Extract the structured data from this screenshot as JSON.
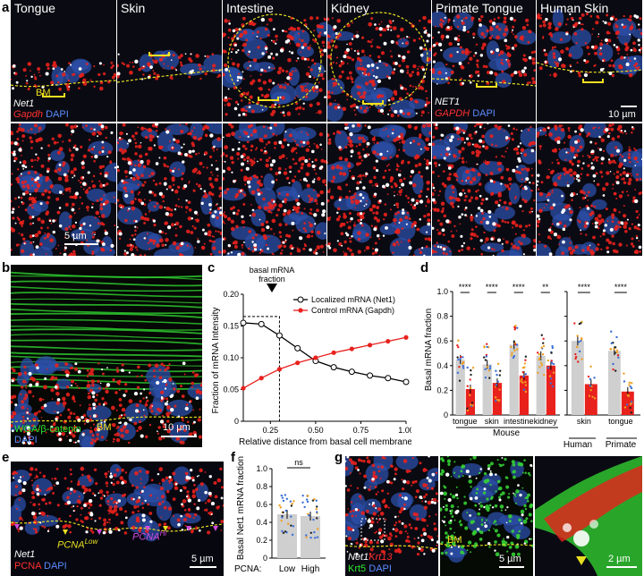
{
  "panel_a": {
    "label": "a",
    "tiles": [
      "Tongue",
      "Skin",
      "Intestine",
      "Kidney",
      "Primate Tongue",
      "Human Skin"
    ],
    "bm": "BM",
    "legend_mouse": {
      "l1": "Net1",
      "l2": "Gapdh",
      "l3": "DAPI"
    },
    "legend_primate": {
      "l1": "NET1",
      "l2": "GAPDH",
      "l3": "DAPI"
    },
    "scale_top": "10 µm",
    "scale_bottom": "5 µm"
  },
  "panel_b": {
    "label": "b",
    "bm": "BM",
    "stain": "WGA/β-catenin",
    "dapi": "DAPI",
    "scale": "10 µm"
  },
  "panel_c": {
    "label": "c",
    "annotation_l1": "basal mRNA",
    "annotation_l2": "fraction"
  },
  "panel_d": {
    "label": "d",
    "group_mouse": "Mouse",
    "group_human": "Human",
    "group_primate": "Primate"
  },
  "panel_e": {
    "label": "e",
    "l1": "Net1",
    "l2": "PCNA",
    "l3": "DAPI",
    "low": "PCNA",
    "low_sup": "Low",
    "hi": "PCNA",
    "hi_sup": "Hi",
    "scale": "5 µm"
  },
  "panel_f": {
    "label": "f",
    "pcna": "PCNA:"
  },
  "panel_g": {
    "label": "g",
    "l1": "Net1",
    "l2": "Krt13",
    "l3": "Krt5",
    "l4": "DAPI",
    "bm": "BM",
    "scale1": "5 µm",
    "scale2": "2 µm"
  },
  "chart_data": [
    {
      "type": "line",
      "xlabel": "Relative distance from basal cell membrane",
      "ylabel": "Fraction of mRNA Intensity",
      "xlim": [
        0.1,
        1.0
      ],
      "ylim": [
        0,
        0.2
      ],
      "xticks": [
        "0.25",
        "0.50",
        "0.75",
        "1.00"
      ],
      "yticks": [
        "0",
        "0.05",
        "0.10",
        "0.15",
        "0.20"
      ],
      "x": [
        0.1,
        0.2,
        0.3,
        0.4,
        0.5,
        0.6,
        0.7,
        0.8,
        0.9,
        1.0
      ],
      "series": [
        {
          "name": "Localized mRNA (Net1)",
          "color": "#000000",
          "values": [
            0.155,
            0.153,
            0.135,
            0.115,
            0.095,
            0.085,
            0.078,
            0.072,
            0.068,
            0.062
          ]
        },
        {
          "name": "Control mRNA (Gapdh)",
          "color": "#e8211d",
          "values": [
            0.052,
            0.068,
            0.082,
            0.092,
            0.1,
            0.108,
            0.114,
            0.12,
            0.126,
            0.132
          ]
        }
      ]
    },
    {
      "type": "bar",
      "ylabel": "Basal mRNA fraction",
      "ylim": [
        0,
        1.0
      ],
      "yticks": [
        "0",
        "0.2",
        "0.4",
        "0.6",
        "0.8",
        "1.0"
      ],
      "categories": [
        "tongue",
        "skin",
        "intestine",
        "kidney"
      ],
      "series": [
        {
          "name": "Net1",
          "color": "#cfcfcf",
          "values": [
            0.45,
            0.41,
            0.57,
            0.48
          ]
        },
        {
          "name": "Gapdh",
          "color": "#e8211d",
          "values": [
            0.21,
            0.26,
            0.32,
            0.4
          ]
        }
      ],
      "significance": [
        "****",
        "****",
        "****",
        "**"
      ]
    },
    {
      "type": "bar",
      "ylim": [
        0,
        1.0
      ],
      "yticks": [
        "0",
        "0.2",
        "0.4",
        "0.6",
        "0.8",
        "1.0"
      ],
      "categories": [
        "skin",
        "tongue"
      ],
      "series": [
        {
          "name": "NET1",
          "color": "#cfcfcf",
          "values": [
            0.6,
            0.52
          ]
        },
        {
          "name": "GAPDH",
          "color": "#e8211d",
          "values": [
            0.25,
            0.19
          ]
        }
      ],
      "significance": [
        "****",
        "****"
      ]
    },
    {
      "type": "bar",
      "ylabel": "Basal Net1 mRNA fraction",
      "ylim": [
        0,
        1.0
      ],
      "yticks": [
        "0",
        "0.2",
        "0.4",
        "0.6",
        "0.8",
        "1.0"
      ],
      "categories": [
        "Low",
        "High"
      ],
      "values": [
        0.49,
        0.47
      ],
      "significance": "ns"
    }
  ]
}
